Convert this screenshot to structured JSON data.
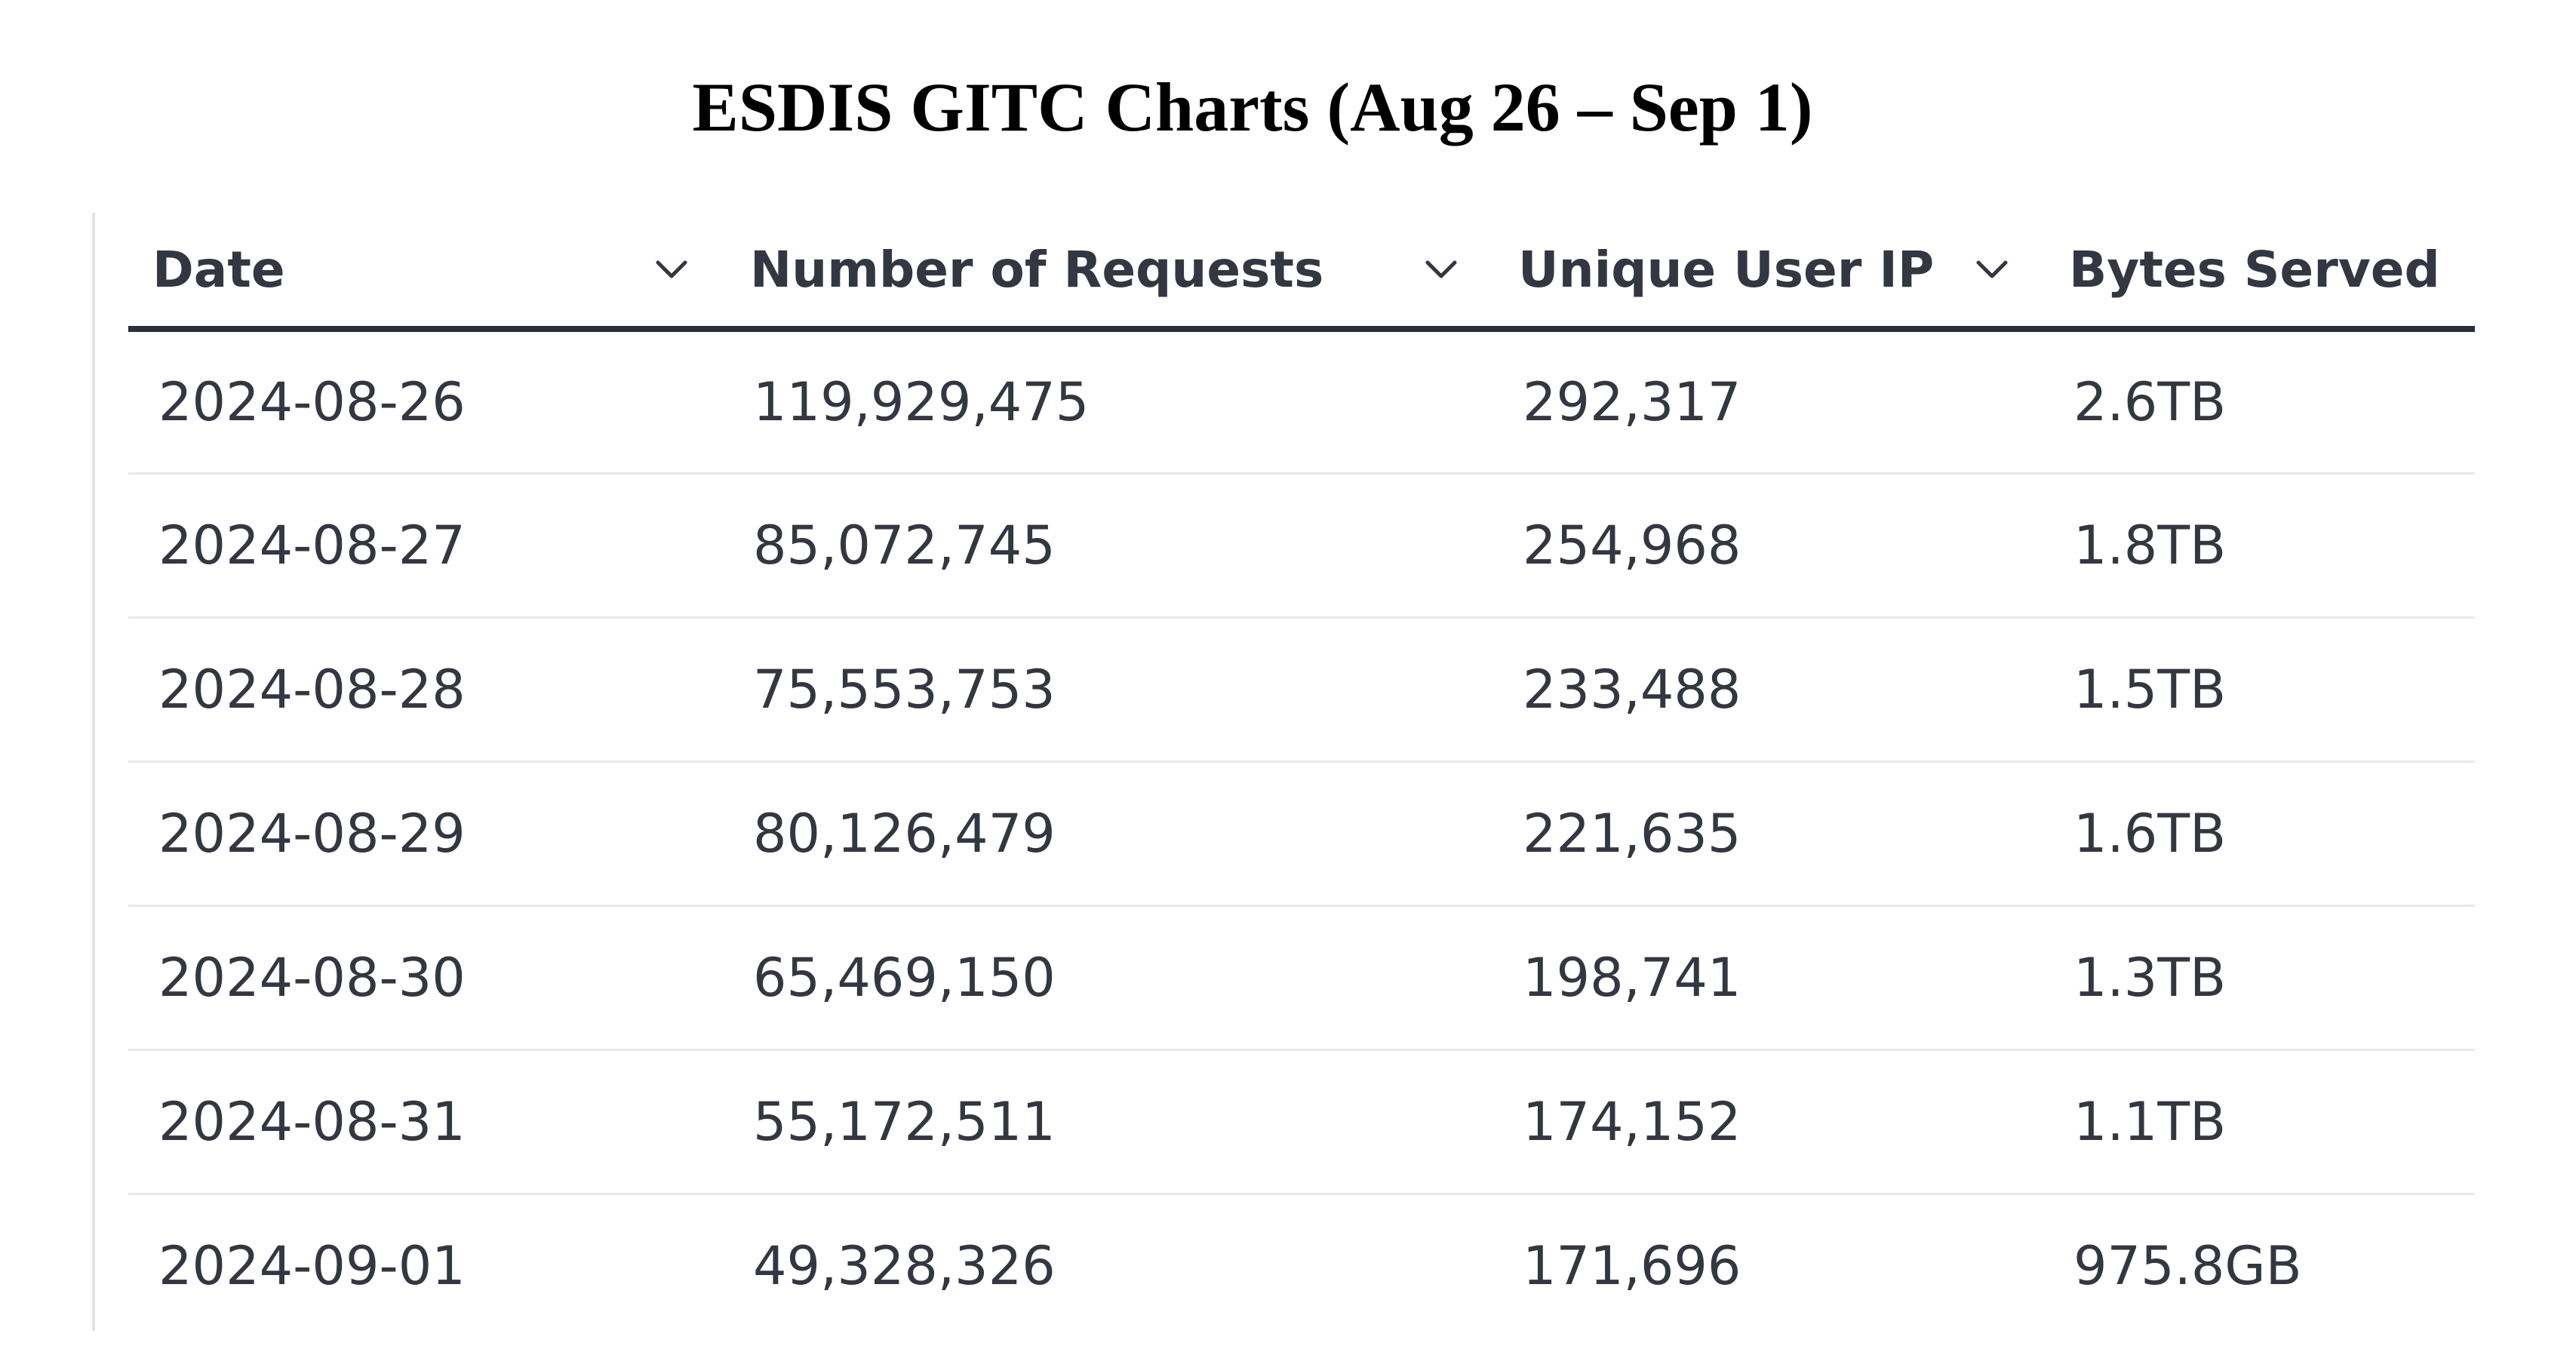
{
  "title": "ESDIS GITC Charts (Aug 26 – Sep 1)",
  "table": {
    "columns": [
      {
        "label": "Date",
        "sort_icon": "chevron-down-icon"
      },
      {
        "label": "Number of Requests",
        "sort_icon": "chevron-down-icon"
      },
      {
        "label": "Unique User IP",
        "sort_icon": "chevron-down-icon"
      },
      {
        "label": "Bytes Served"
      }
    ],
    "rows": [
      {
        "date": "2024-08-26",
        "requests": "119,929,475",
        "unique_ips": "292,317",
        "bytes": "2.6TB"
      },
      {
        "date": "2024-08-27",
        "requests": "85,072,745",
        "unique_ips": "254,968",
        "bytes": "1.8TB"
      },
      {
        "date": "2024-08-28",
        "requests": "75,553,753",
        "unique_ips": "233,488",
        "bytes": "1.5TB"
      },
      {
        "date": "2024-08-29",
        "requests": "80,126,479",
        "unique_ips": "221,635",
        "bytes": "1.6TB"
      },
      {
        "date": "2024-08-30",
        "requests": "65,469,150",
        "unique_ips": "198,741",
        "bytes": "1.3TB"
      },
      {
        "date": "2024-08-31",
        "requests": "55,172,511",
        "unique_ips": "174,152",
        "bytes": "1.1TB"
      },
      {
        "date": "2024-09-01",
        "requests": "49,328,326",
        "unique_ips": "171,696",
        "bytes": "975.8GB"
      }
    ]
  },
  "colors": {
    "text": "#343741",
    "header_rule": "#2b2f38",
    "row_divider": "#e6e8ee"
  }
}
